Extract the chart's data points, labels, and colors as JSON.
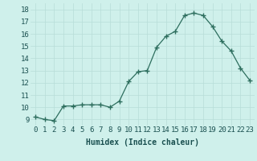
{
  "x": [
    0,
    1,
    2,
    3,
    4,
    5,
    6,
    7,
    8,
    9,
    10,
    11,
    12,
    13,
    14,
    15,
    16,
    17,
    18,
    19,
    20,
    21,
    22,
    23
  ],
  "y": [
    9.2,
    9.0,
    8.9,
    10.1,
    10.1,
    10.2,
    10.2,
    10.2,
    10.0,
    10.5,
    12.1,
    12.9,
    13.0,
    14.9,
    15.8,
    16.2,
    17.5,
    17.7,
    17.5,
    16.6,
    15.4,
    14.6,
    13.2,
    12.2
  ],
  "xlabel": "Humidex (Indice chaleur)",
  "ylim": [
    8.5,
    18.5
  ],
  "xlim": [
    -0.5,
    23.5
  ],
  "yticks": [
    9,
    10,
    11,
    12,
    13,
    14,
    15,
    16,
    17,
    18
  ],
  "xticks": [
    0,
    1,
    2,
    3,
    4,
    5,
    6,
    7,
    8,
    9,
    10,
    11,
    12,
    13,
    14,
    15,
    16,
    17,
    18,
    19,
    20,
    21,
    22,
    23
  ],
  "line_color": "#2d6e5e",
  "marker": "+",
  "marker_size": 4,
  "bg_color": "#cff0eb",
  "grid_color": "#b8ddd8",
  "font_color": "#1a5050",
  "xlabel_fontsize": 7,
  "tick_fontsize": 6.5
}
